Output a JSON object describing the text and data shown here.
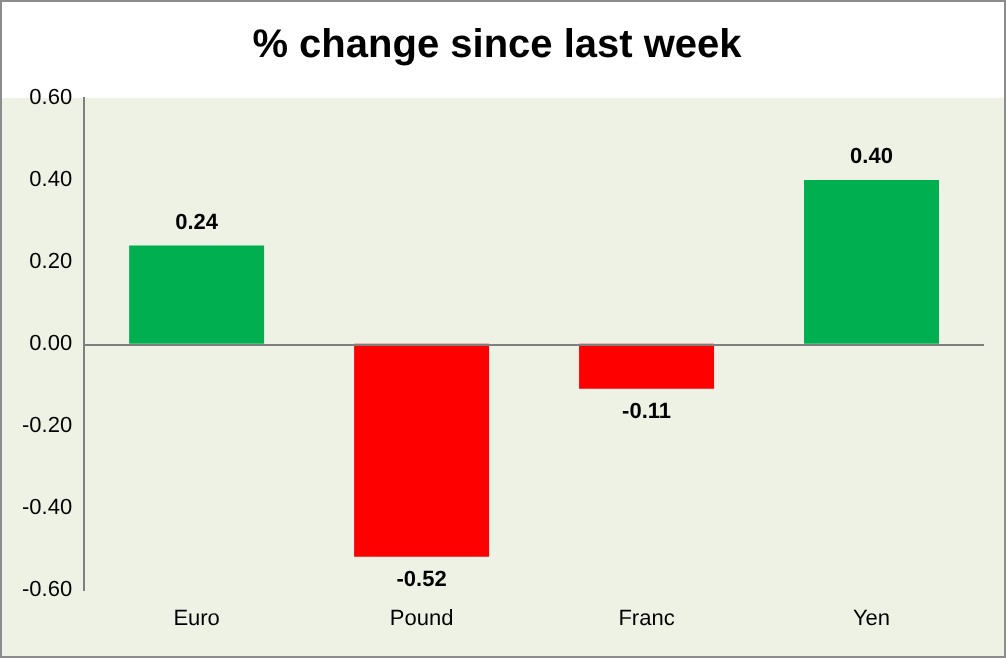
{
  "chart_data": {
    "type": "bar",
    "title": "% change since last week",
    "categories": [
      "Euro",
      "Pound",
      "Franc",
      "Yen"
    ],
    "values": [
      0.24,
      -0.52,
      -0.11,
      0.4
    ],
    "colors": [
      "#00b050",
      "#ff0000",
      "#ff0000",
      "#00b050"
    ],
    "ylim": [
      -0.6,
      0.6
    ],
    "yticks": [
      {
        "value": -0.6,
        "label": "-0.60"
      },
      {
        "value": -0.4,
        "label": "-0.40"
      },
      {
        "value": -0.2,
        "label": "-0.20"
      },
      {
        "value": 0,
        "label": "0.00"
      },
      {
        "value": 0.2,
        "label": "0.20"
      },
      {
        "value": 0.4,
        "label": "0.40"
      },
      {
        "value": 0.6,
        "label": "0.60"
      }
    ],
    "value_labels": [
      "0.24",
      "-0.52",
      "-0.11",
      "0.40"
    ],
    "ref_lines": [
      {
        "axis": "y",
        "value": 0,
        "color": "#7f7f7f"
      }
    ],
    "grid": false,
    "legend": false
  }
}
